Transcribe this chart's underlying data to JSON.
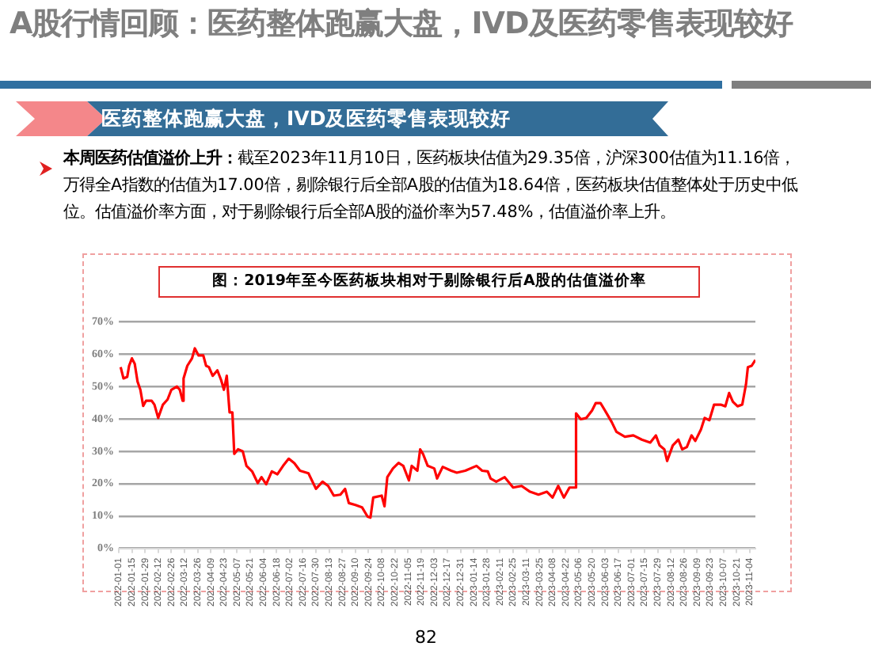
{
  "chart_data": {
    "type": "line",
    "title": "A股行情回顾：医药整体跑赢大盘，IVD及医药零售表现较好",
    "subtitle": "医药整体跑赢大盘，IVD及医药零售表现较好",
    "annotations": [
      "本周医药估值溢价上升：",
      "截至2023年11月10日，医药板块估值为29.35倍，沪深300估值为11.16倍，万得全A指数的估值为17.00倍，剔除银行后全部A股的估值为18.64倍，医药板块估值整体处于历史中低位。估值溢价率方面，对于剔除银行后全部A股的溢价率为57.48%，估值溢价率上升。",
      "图：2019年至今医药板块相对于剔除银行后A股的估值溢价率",
      "82"
    ],
    "x": [
      "2022-01-03",
      "2022-01-06",
      "2022-01-10",
      "2022-01-12",
      "2022-01-15",
      "2022-01-18",
      "2022-01-21",
      "2022-01-24",
      "2022-01-27",
      "2022-01-30",
      "2022-02-05",
      "2022-02-08",
      "2022-02-12",
      "2022-02-17",
      "2022-02-22",
      "2022-02-26",
      "2022-03-04",
      "2022-03-07",
      "2022-03-10",
      "2022-03-11",
      "2022-03-15",
      "2022-03-20",
      "2022-03-23",
      "2022-03-27",
      "2022-04-01",
      "2022-04-04",
      "2022-04-07",
      "2022-04-11",
      "2022-04-16",
      "2022-04-20",
      "2022-04-23",
      "2022-04-26",
      "2022-04-29",
      "2022-05-02",
      "2022-05-04",
      "2022-05-08",
      "2022-05-13",
      "2022-05-17",
      "2022-05-23",
      "2022-05-29",
      "2022-06-02",
      "2022-06-07",
      "2022-06-13",
      "2022-06-19",
      "2022-06-25",
      "2022-07-01",
      "2022-07-07",
      "2022-07-13",
      "2022-07-22",
      "2022-07-30",
      "2022-08-06",
      "2022-08-12",
      "2022-08-18",
      "2022-08-25",
      "2022-08-30",
      "2022-09-03",
      "2022-09-10",
      "2022-09-17",
      "2022-09-23",
      "2022-09-26",
      "2022-09-29",
      "2022-10-08",
      "2022-10-11",
      "2022-10-14",
      "2022-10-20",
      "2022-10-26",
      "2022-10-31",
      "2022-11-06",
      "2022-11-09",
      "2022-11-15",
      "2022-11-18",
      "2022-11-21",
      "2022-11-26",
      "2022-12-03",
      "2022-12-06",
      "2022-12-12",
      "2022-12-21",
      "2022-12-27",
      "2023-01-05",
      "2023-01-17",
      "2023-01-23",
      "2023-01-29",
      "2023-02-01",
      "2023-02-07",
      "2023-02-16",
      "2023-02-25",
      "2023-03-06",
      "2023-03-15",
      "2023-03-24",
      "2023-04-02",
      "2023-04-08",
      "2023-04-14",
      "2023-04-20",
      "2023-04-26",
      "2023-05-02",
      "2023-05-03",
      "2023-05-08",
      "2023-05-14",
      "2023-05-20",
      "2023-05-24",
      "2023-05-29",
      "2023-06-04",
      "2023-06-10",
      "2023-06-15",
      "2023-06-24",
      "2023-07-03",
      "2023-07-12",
      "2023-07-21",
      "2023-07-27",
      "2023-07-31",
      "2023-08-05",
      "2023-08-08",
      "2023-08-14",
      "2023-08-20",
      "2023-08-24",
      "2023-08-29",
      "2023-09-03",
      "2023-09-07",
      "2023-09-13",
      "2023-09-17",
      "2023-09-22",
      "2023-09-27",
      "2023-10-04",
      "2023-10-09",
      "2023-10-13",
      "2023-10-17",
      "2023-10-22",
      "2023-10-27",
      "2023-10-31",
      "2023-11-02",
      "2023-11-06",
      "2023-11-10"
    ],
    "values": [
      56,
      52.5,
      53,
      56.4,
      58.7,
      57,
      51.5,
      49,
      44,
      45.6,
      45.6,
      44.4,
      40.3,
      44.4,
      46,
      49,
      50,
      49,
      45.6,
      52.5,
      56.4,
      58.7,
      61.8,
      59.6,
      59.6,
      56.4,
      56,
      53.3,
      55,
      52,
      49,
      53.3,
      42,
      42,
      29.2,
      30.6,
      30,
      25.5,
      23.8,
      20.2,
      22,
      19.8,
      23.8,
      22.9,
      25.5,
      27.7,
      26.3,
      24,
      23.2,
      18.4,
      20.6,
      19.3,
      16.3,
      16.6,
      18.4,
      14,
      13.4,
      12.7,
      9.8,
      9.5,
      15.7,
      16.3,
      13,
      22,
      24.7,
      26.4,
      25.5,
      21,
      25.5,
      24,
      30.6,
      29.2,
      25.5,
      24.7,
      21.6,
      25.2,
      24,
      23.4,
      24,
      25.5,
      24,
      23.8,
      21.6,
      20.6,
      22,
      18.8,
      19.3,
      17.5,
      16.6,
      17.5,
      15.7,
      19.3,
      15.7,
      18.8,
      18.8,
      41.7,
      39.9,
      40.3,
      42.6,
      44.9,
      44.9,
      42,
      39,
      36,
      34.5,
      34.9,
      33.6,
      32.7,
      34.9,
      31.8,
      30.6,
      27,
      31.8,
      33.6,
      30.6,
      31.3,
      34.9,
      33.2,
      36.7,
      40.3,
      39.6,
      44.4,
      44.4,
      43.9,
      48,
      45.3,
      43.9,
      44.4,
      50.7,
      56,
      56.4,
      58.2
    ],
    "color": "#ff0000",
    "line_style": "solid",
    "marker": "none",
    "grid": "y",
    "legend": false,
    "xlim": [
      "2022-01-01",
      "2023-11-10"
    ],
    "xticks": [
      "2022-01-01",
      "2022-01-15",
      "2022-01-29",
      "2022-02-12",
      "2022-02-26",
      "2022-03-12",
      "2022-03-26",
      "2022-04-09",
      "2022-04-23",
      "2022-05-07",
      "2022-05-21",
      "2022-06-04",
      "2022-06-18",
      "2022-07-02",
      "2022-07-16",
      "2022-07-30",
      "2022-08-13",
      "2022-08-27",
      "2022-09-10",
      "2022-09-24",
      "2022-10-08",
      "2022-10-22",
      "2022-11-05",
      "2022-11-19",
      "2022-12-03",
      "2022-12-17",
      "2022-12-31",
      "2023-01-14",
      "2023-01-28",
      "2023-02-11",
      "2023-02-25",
      "2023-03-11",
      "2023-03-25",
      "2023-04-08",
      "2023-04-22",
      "2023-05-06",
      "2023-05-20",
      "2023-06-03",
      "2023-06-17",
      "2023-07-01",
      "2023-07-15",
      "2023-07-29",
      "2023-08-12",
      "2023-08-26",
      "2023-09-09",
      "2023-09-23",
      "2023-10-07",
      "2023-10-21",
      "2023-11-04"
    ],
    "ylim": [
      0,
      70
    ],
    "yticks": [
      {
        "value": 0,
        "label": "0%"
      },
      {
        "value": 10,
        "label": "10%"
      },
      {
        "value": 20,
        "label": "20%"
      },
      {
        "value": 30,
        "label": "30%"
      },
      {
        "value": 40,
        "label": "40%"
      },
      {
        "value": 50,
        "label": "50%"
      },
      {
        "value": 60,
        "label": "60%"
      },
      {
        "value": 70,
        "label": "70%"
      }
    ]
  }
}
